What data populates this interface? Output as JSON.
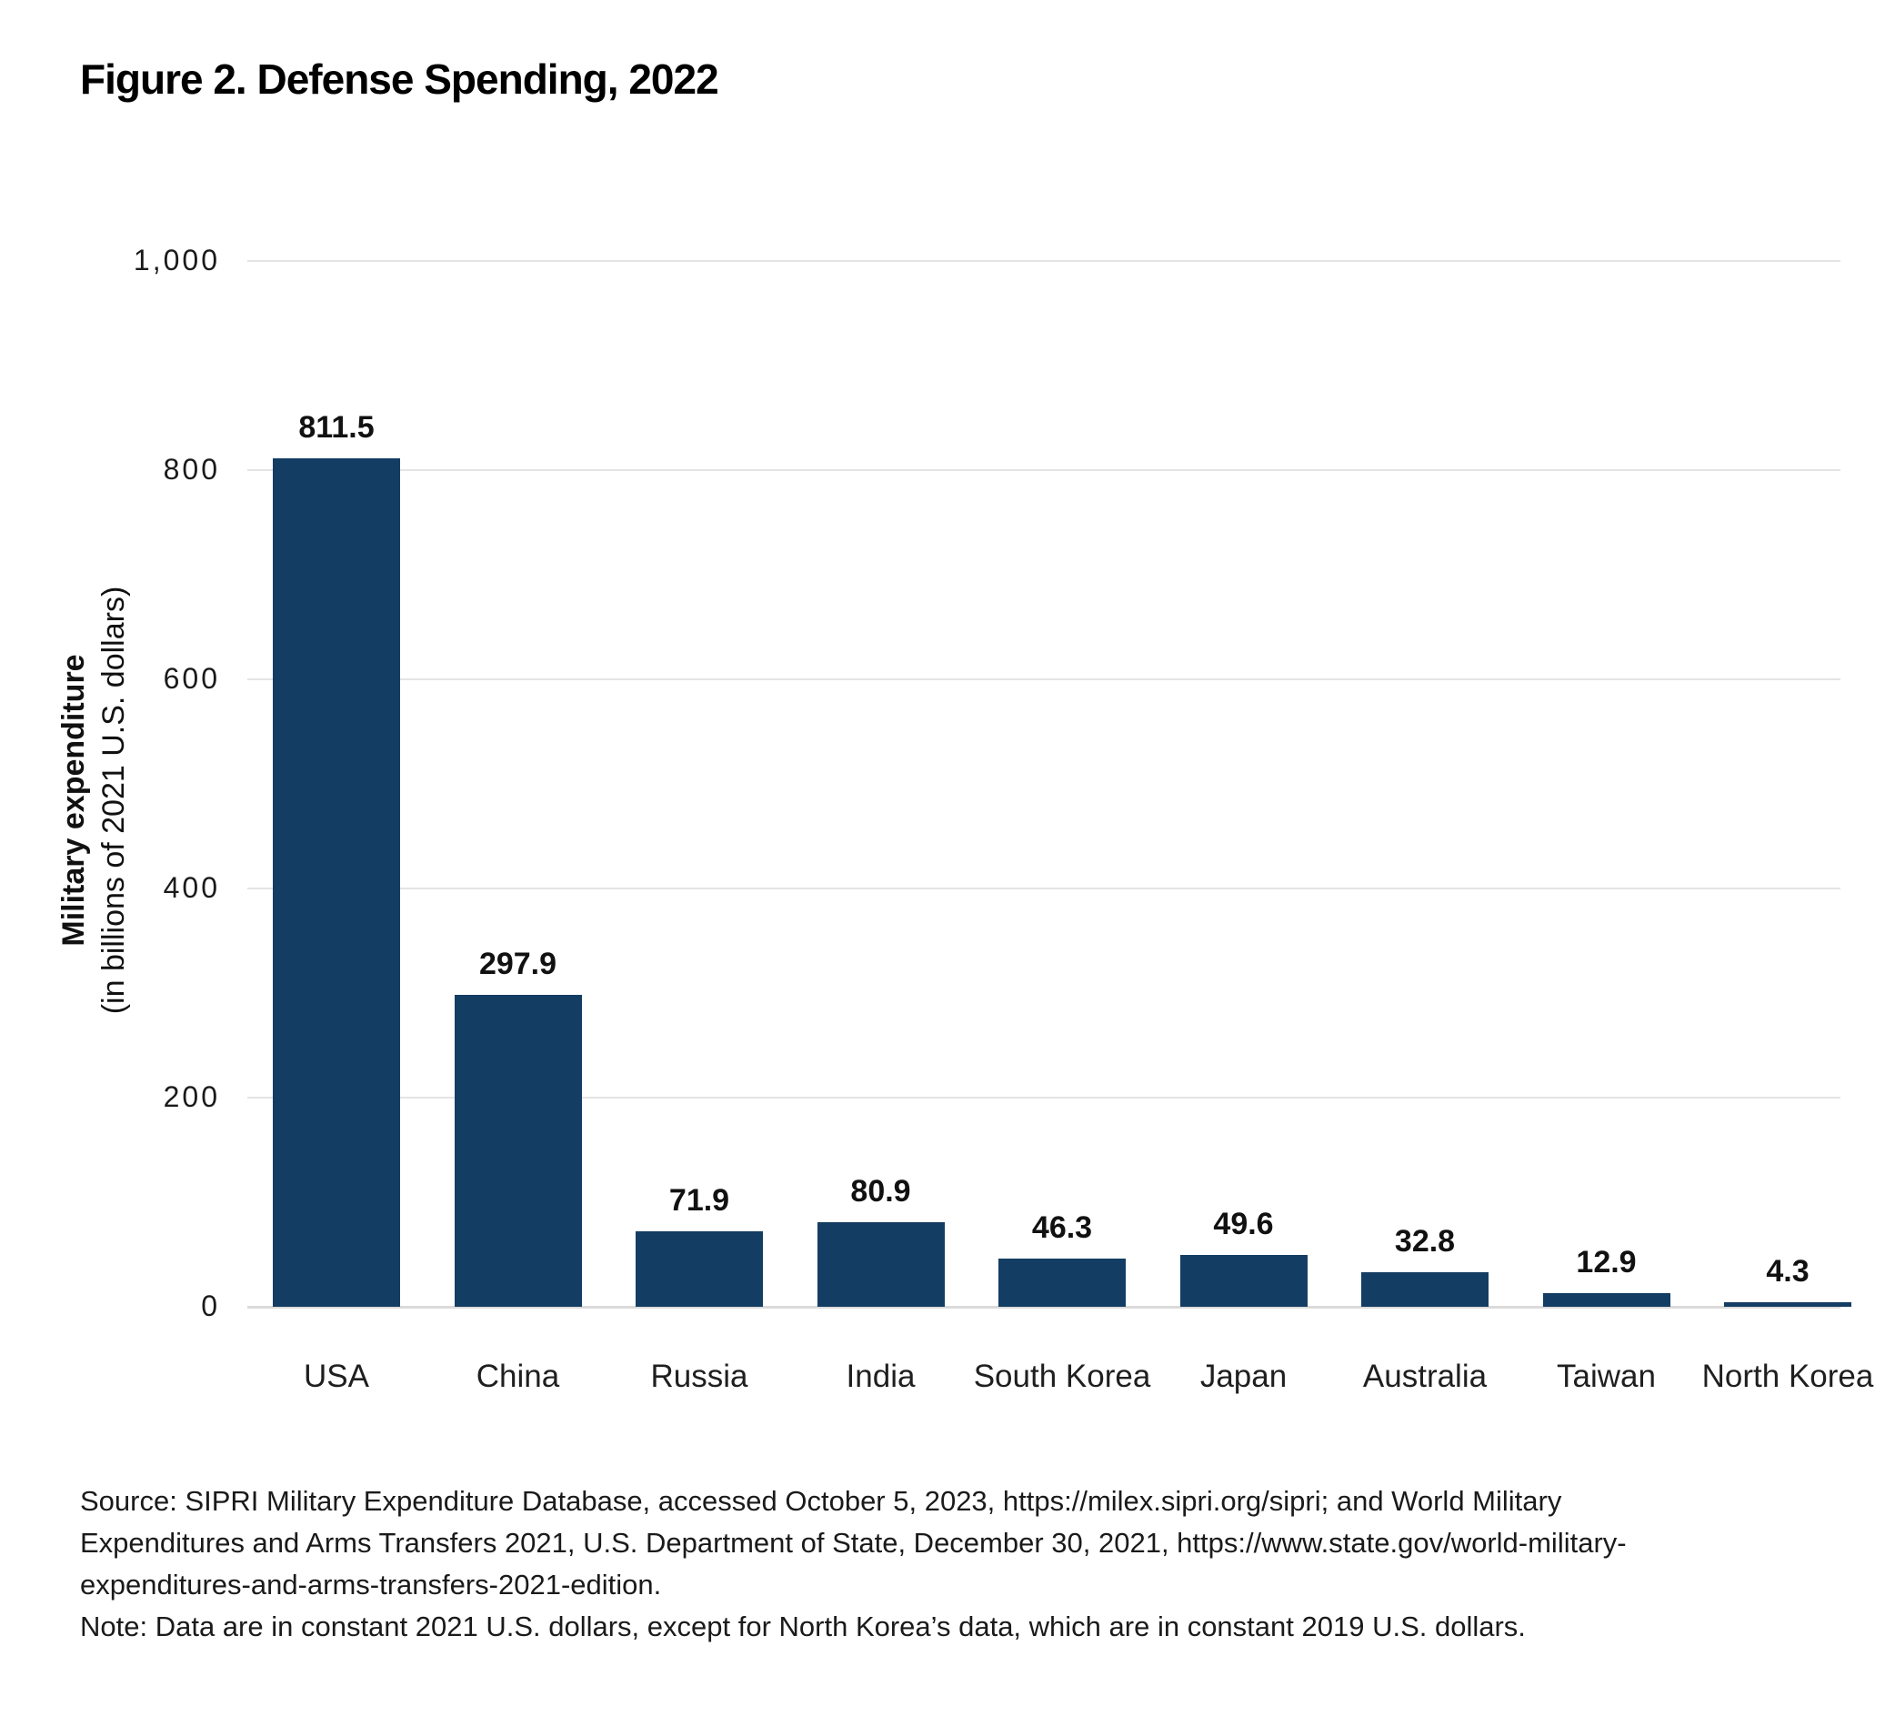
{
  "figure": {
    "title": "Figure 2. Defense Spending, 2022",
    "source_lines": [
      "Source: SIPRI Military Expenditure Database, accessed October 5, 2023, https://milex.sipri.org/sipri; and World Military",
      "Expenditures and Arms Transfers 2021, U.S. Department of State, December 30, 2021, https://www.state.gov/world-military-",
      "expenditures-and-arms-transfers-2021-edition."
    ],
    "note": "Note: Data are in constant 2021 U.S. dollars, except for North Korea’s data, which are in constant 2019 U.S. dollars."
  },
  "chart_data": {
    "type": "bar",
    "title": "Figure 2. Defense Spending, 2022",
    "categories": [
      "USA",
      "China",
      "Russia",
      "India",
      "South Korea",
      "Japan",
      "Australia",
      "Taiwan",
      "North Korea"
    ],
    "values": [
      811.5,
      297.9,
      71.9,
      80.9,
      46.3,
      49.6,
      32.8,
      12.9,
      4.3
    ],
    "value_labels": [
      "811.5",
      "297.9",
      "71.9",
      "80.9",
      "46.3",
      "49.6",
      "32.8",
      "12.9",
      "4.3"
    ],
    "xlabel": "",
    "ylabel": "Military expenditure",
    "ylabel_sub": "(in billions of 2021 U.S. dollars)",
    "ylim": [
      0,
      1000
    ],
    "yticks": [
      0,
      200,
      400,
      600,
      800,
      1000
    ],
    "ytick_labels": [
      "0",
      "200",
      "400",
      "600",
      "800",
      "1,000"
    ],
    "grid": true,
    "legend_position": "none",
    "bar_color": "#143d63",
    "gridline_color": "#e4e4e4"
  }
}
